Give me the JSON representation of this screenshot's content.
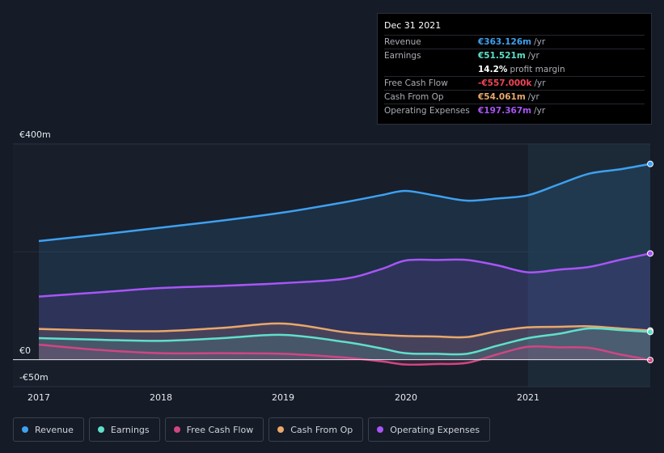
{
  "tooltip": {
    "date": "Dec 31 2021",
    "rows": [
      {
        "label": "Revenue",
        "value": "€363.126m",
        "unit": "/yr",
        "color": "#3ea1f0"
      },
      {
        "label": "Earnings",
        "value": "€51.521m",
        "unit": "/yr",
        "color": "#5fe0cb"
      },
      {
        "label": "",
        "value": "14.2%",
        "unit": "profit margin",
        "color": "#ffffff"
      },
      {
        "label": "Free Cash Flow",
        "value": "-€557.000k",
        "unit": "/yr",
        "color": "#ef4457"
      },
      {
        "label": "Cash From Op",
        "value": "€54.061m",
        "unit": "/yr",
        "color": "#e9a86b"
      },
      {
        "label": "Operating Expenses",
        "value": "€197.367m",
        "unit": "/yr",
        "color": "#a855f7"
      }
    ]
  },
  "legend": [
    {
      "label": "Revenue",
      "color": "#3ea1f0"
    },
    {
      "label": "Earnings",
      "color": "#5fe0cb"
    },
    {
      "label": "Free Cash Flow",
      "color": "#d04682"
    },
    {
      "label": "Cash From Op",
      "color": "#e9a86b"
    },
    {
      "label": "Operating Expenses",
      "color": "#a855f7"
    }
  ],
  "chart_data": {
    "type": "area",
    "title": "",
    "xlabel": "",
    "ylabel": "",
    "x_ticks": [
      "2017",
      "2018",
      "2019",
      "2020",
      "2021"
    ],
    "y_ticks": [
      "€400m",
      "€0",
      "-€50m"
    ],
    "ylim": [
      -50,
      400
    ],
    "xlim": [
      2017.0,
      2022.0
    ],
    "highlight_from": 2021.0,
    "series": [
      {
        "name": "Revenue",
        "color": "#3ea1f0",
        "x": [
          2017.0,
          2017.5,
          2018.0,
          2018.5,
          2019.0,
          2019.5,
          2019.8,
          2020.0,
          2020.25,
          2020.5,
          2020.75,
          2021.0,
          2021.25,
          2021.5,
          2021.75,
          2022.0
        ],
        "values": [
          220,
          232,
          245,
          258,
          273,
          292,
          305,
          313,
          304,
          295,
          299,
          305,
          325,
          345,
          353,
          363
        ]
      },
      {
        "name": "Operating Expenses",
        "color": "#a855f7",
        "x": [
          2017.0,
          2017.5,
          2018.0,
          2018.5,
          2019.0,
          2019.5,
          2019.8,
          2020.0,
          2020.25,
          2020.5,
          2020.75,
          2021.0,
          2021.25,
          2021.5,
          2021.75,
          2022.0
        ],
        "values": [
          117,
          125,
          133,
          137,
          142,
          150,
          168,
          184,
          185,
          185,
          175,
          162,
          167,
          172,
          185,
          197
        ]
      },
      {
        "name": "Cash From Op",
        "color": "#e9a86b",
        "x": [
          2017.0,
          2017.5,
          2018.0,
          2018.5,
          2019.0,
          2019.5,
          2019.8,
          2020.0,
          2020.25,
          2020.5,
          2020.75,
          2021.0,
          2021.25,
          2021.5,
          2021.75,
          2022.0
        ],
        "values": [
          57,
          54,
          53,
          59,
          67,
          51,
          46,
          44,
          43,
          42,
          53,
          60,
          61,
          62,
          58,
          54
        ]
      },
      {
        "name": "Earnings",
        "color": "#5fe0cb",
        "x": [
          2017.0,
          2017.5,
          2018.0,
          2018.5,
          2019.0,
          2019.5,
          2019.8,
          2020.0,
          2020.25,
          2020.5,
          2020.75,
          2021.0,
          2021.25,
          2021.5,
          2021.75,
          2022.0
        ],
        "values": [
          40,
          37,
          35,
          40,
          46,
          33,
          21,
          12,
          11,
          11,
          26,
          40,
          48,
          58,
          55,
          51.5
        ]
      },
      {
        "name": "Free Cash Flow",
        "color": "#d04682",
        "x": [
          2017.0,
          2017.5,
          2018.0,
          2018.5,
          2019.0,
          2019.5,
          2019.8,
          2020.0,
          2020.25,
          2020.5,
          2020.75,
          2021.0,
          2021.25,
          2021.5,
          2021.75,
          2022.0
        ],
        "values": [
          28,
          18,
          12,
          12,
          11,
          4,
          -3,
          -9,
          -8,
          -6,
          10,
          24,
          23,
          22,
          10,
          -0.6
        ]
      }
    ]
  }
}
